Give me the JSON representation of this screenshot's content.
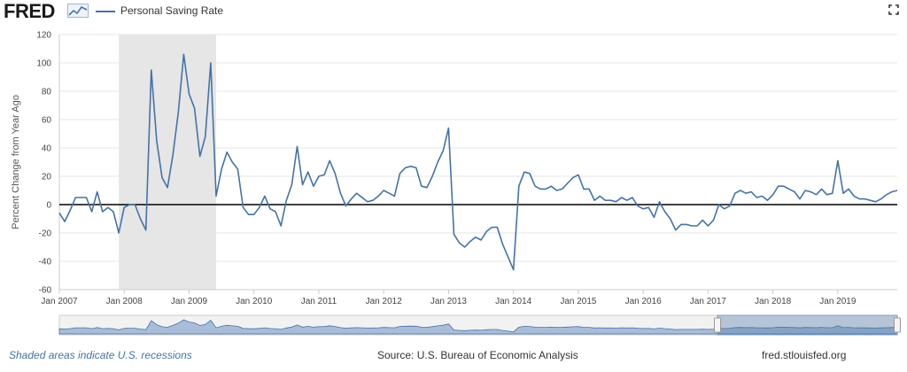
{
  "header": {
    "logo_text": "FRED",
    "legend_label": "Personal Saving Rate",
    "icons": [
      "fred-logo-chart-icon",
      "expand-icon"
    ]
  },
  "footer": {
    "recession_note": "Shaded areas indicate U.S. recessions",
    "source": "Source: U.S. Bureau of Economic Analysis",
    "site": "fred.stlouisfed.org"
  },
  "colors": {
    "line": "#4572a7",
    "recession": "#e6e6e6",
    "zero_line": "#000000",
    "grid": "#e6e6e6"
  },
  "chart_data": {
    "type": "line",
    "ylabel": "Percent Change from Year Ago",
    "ylim": [
      -60,
      120
    ],
    "yticks": [
      120,
      100,
      80,
      60,
      40,
      20,
      0,
      -20,
      -40,
      -60
    ],
    "xlim": [
      "2007-01",
      "2019-12"
    ],
    "xticks": [
      "Jan 2007",
      "Jan 2008",
      "Jan 2009",
      "Jan 2010",
      "Jan 2011",
      "Jan 2012",
      "Jan 2013",
      "Jan 2014",
      "Jan 2015",
      "Jan 2016",
      "Jan 2017",
      "Jan 2018",
      "Jan 2019"
    ],
    "grid": true,
    "recession": [
      "2007-12",
      "2009-06"
    ],
    "series": [
      {
        "name": "Personal Saving Rate",
        "x": [
          "2007-01",
          "2007-02",
          "2007-03",
          "2007-04",
          "2007-05",
          "2007-06",
          "2007-07",
          "2007-08",
          "2007-09",
          "2007-10",
          "2007-11",
          "2007-12",
          "2008-01",
          "2008-02",
          "2008-03",
          "2008-04",
          "2008-05",
          "2008-06",
          "2008-07",
          "2008-08",
          "2008-09",
          "2008-10",
          "2008-11",
          "2008-12",
          "2009-01",
          "2009-02",
          "2009-03",
          "2009-04",
          "2009-05",
          "2009-06",
          "2009-07",
          "2009-08",
          "2009-09",
          "2009-10",
          "2009-11",
          "2009-12",
          "2010-01",
          "2010-02",
          "2010-03",
          "2010-04",
          "2010-05",
          "2010-06",
          "2010-07",
          "2010-08",
          "2010-09",
          "2010-10",
          "2010-11",
          "2010-12",
          "2011-01",
          "2011-02",
          "2011-03",
          "2011-04",
          "2011-05",
          "2011-06",
          "2011-07",
          "2011-08",
          "2011-09",
          "2011-10",
          "2011-11",
          "2011-12",
          "2012-01",
          "2012-02",
          "2012-03",
          "2012-04",
          "2012-05",
          "2012-06",
          "2012-07",
          "2012-08",
          "2012-09",
          "2012-10",
          "2012-11",
          "2012-12",
          "2013-01",
          "2013-02",
          "2013-03",
          "2013-04",
          "2013-05",
          "2013-06",
          "2013-07",
          "2013-08",
          "2013-09",
          "2013-10",
          "2013-11",
          "2013-12",
          "2014-01",
          "2014-02",
          "2014-03",
          "2014-04",
          "2014-05",
          "2014-06",
          "2014-07",
          "2014-08",
          "2014-09",
          "2014-10",
          "2014-11",
          "2014-12",
          "2015-01",
          "2015-02",
          "2015-03",
          "2015-04",
          "2015-05",
          "2015-06",
          "2015-07",
          "2015-08",
          "2015-09",
          "2015-10",
          "2015-11",
          "2015-12",
          "2016-01",
          "2016-02",
          "2016-03",
          "2016-04",
          "2016-05",
          "2016-06",
          "2016-07",
          "2016-08",
          "2016-09",
          "2016-10",
          "2016-11",
          "2016-12",
          "2017-01",
          "2017-02",
          "2017-03",
          "2017-04",
          "2017-05",
          "2017-06",
          "2017-07",
          "2017-08",
          "2017-09",
          "2017-10",
          "2017-11",
          "2017-12",
          "2018-01",
          "2018-02",
          "2018-03",
          "2018-04",
          "2018-05",
          "2018-06",
          "2018-07",
          "2018-08",
          "2018-09",
          "2018-10",
          "2018-11",
          "2018-12",
          "2019-01",
          "2019-02",
          "2019-03",
          "2019-04",
          "2019-05",
          "2019-06",
          "2019-07",
          "2019-08",
          "2019-09",
          "2019-10",
          "2019-11",
          "2019-12"
        ],
        "y": [
          -6,
          -12,
          -4,
          5,
          5,
          5,
          -5,
          9,
          -5,
          -2,
          -5,
          -20,
          -2,
          0,
          0,
          -10,
          -18,
          95,
          45,
          19,
          12,
          35,
          65,
          106,
          78,
          68,
          34,
          48,
          100,
          6,
          25,
          37,
          30,
          25,
          -2,
          -7,
          -7,
          -2,
          6,
          -3,
          -5,
          -15,
          3,
          14,
          41,
          14,
          23,
          13,
          20,
          21,
          31,
          22,
          8,
          -1,
          4,
          8,
          5,
          2,
          3,
          6,
          10,
          8,
          6,
          22,
          26,
          27,
          26,
          13,
          12,
          20,
          30,
          38,
          54,
          -21,
          -27,
          -30,
          -26,
          -23,
          -25,
          -19,
          -16,
          -16,
          -28,
          -37,
          -46,
          13,
          23,
          22,
          13,
          11,
          11,
          13,
          10,
          11,
          15,
          19,
          21,
          11,
          11,
          3,
          6,
          3,
          3,
          2,
          5,
          3,
          5,
          -1,
          -3,
          -2,
          -9,
          2,
          -5,
          -10,
          -18,
          -14,
          -14,
          -15,
          -15,
          -11,
          -15,
          -11,
          0,
          -3,
          -1,
          8,
          10,
          8,
          9,
          5,
          6,
          3,
          7,
          13,
          13,
          11,
          9,
          4,
          10,
          9,
          7,
          11,
          7,
          8,
          31,
          8,
          11,
          6,
          4,
          4,
          3,
          2,
          4,
          7,
          9,
          10
        ]
      }
    ]
  }
}
